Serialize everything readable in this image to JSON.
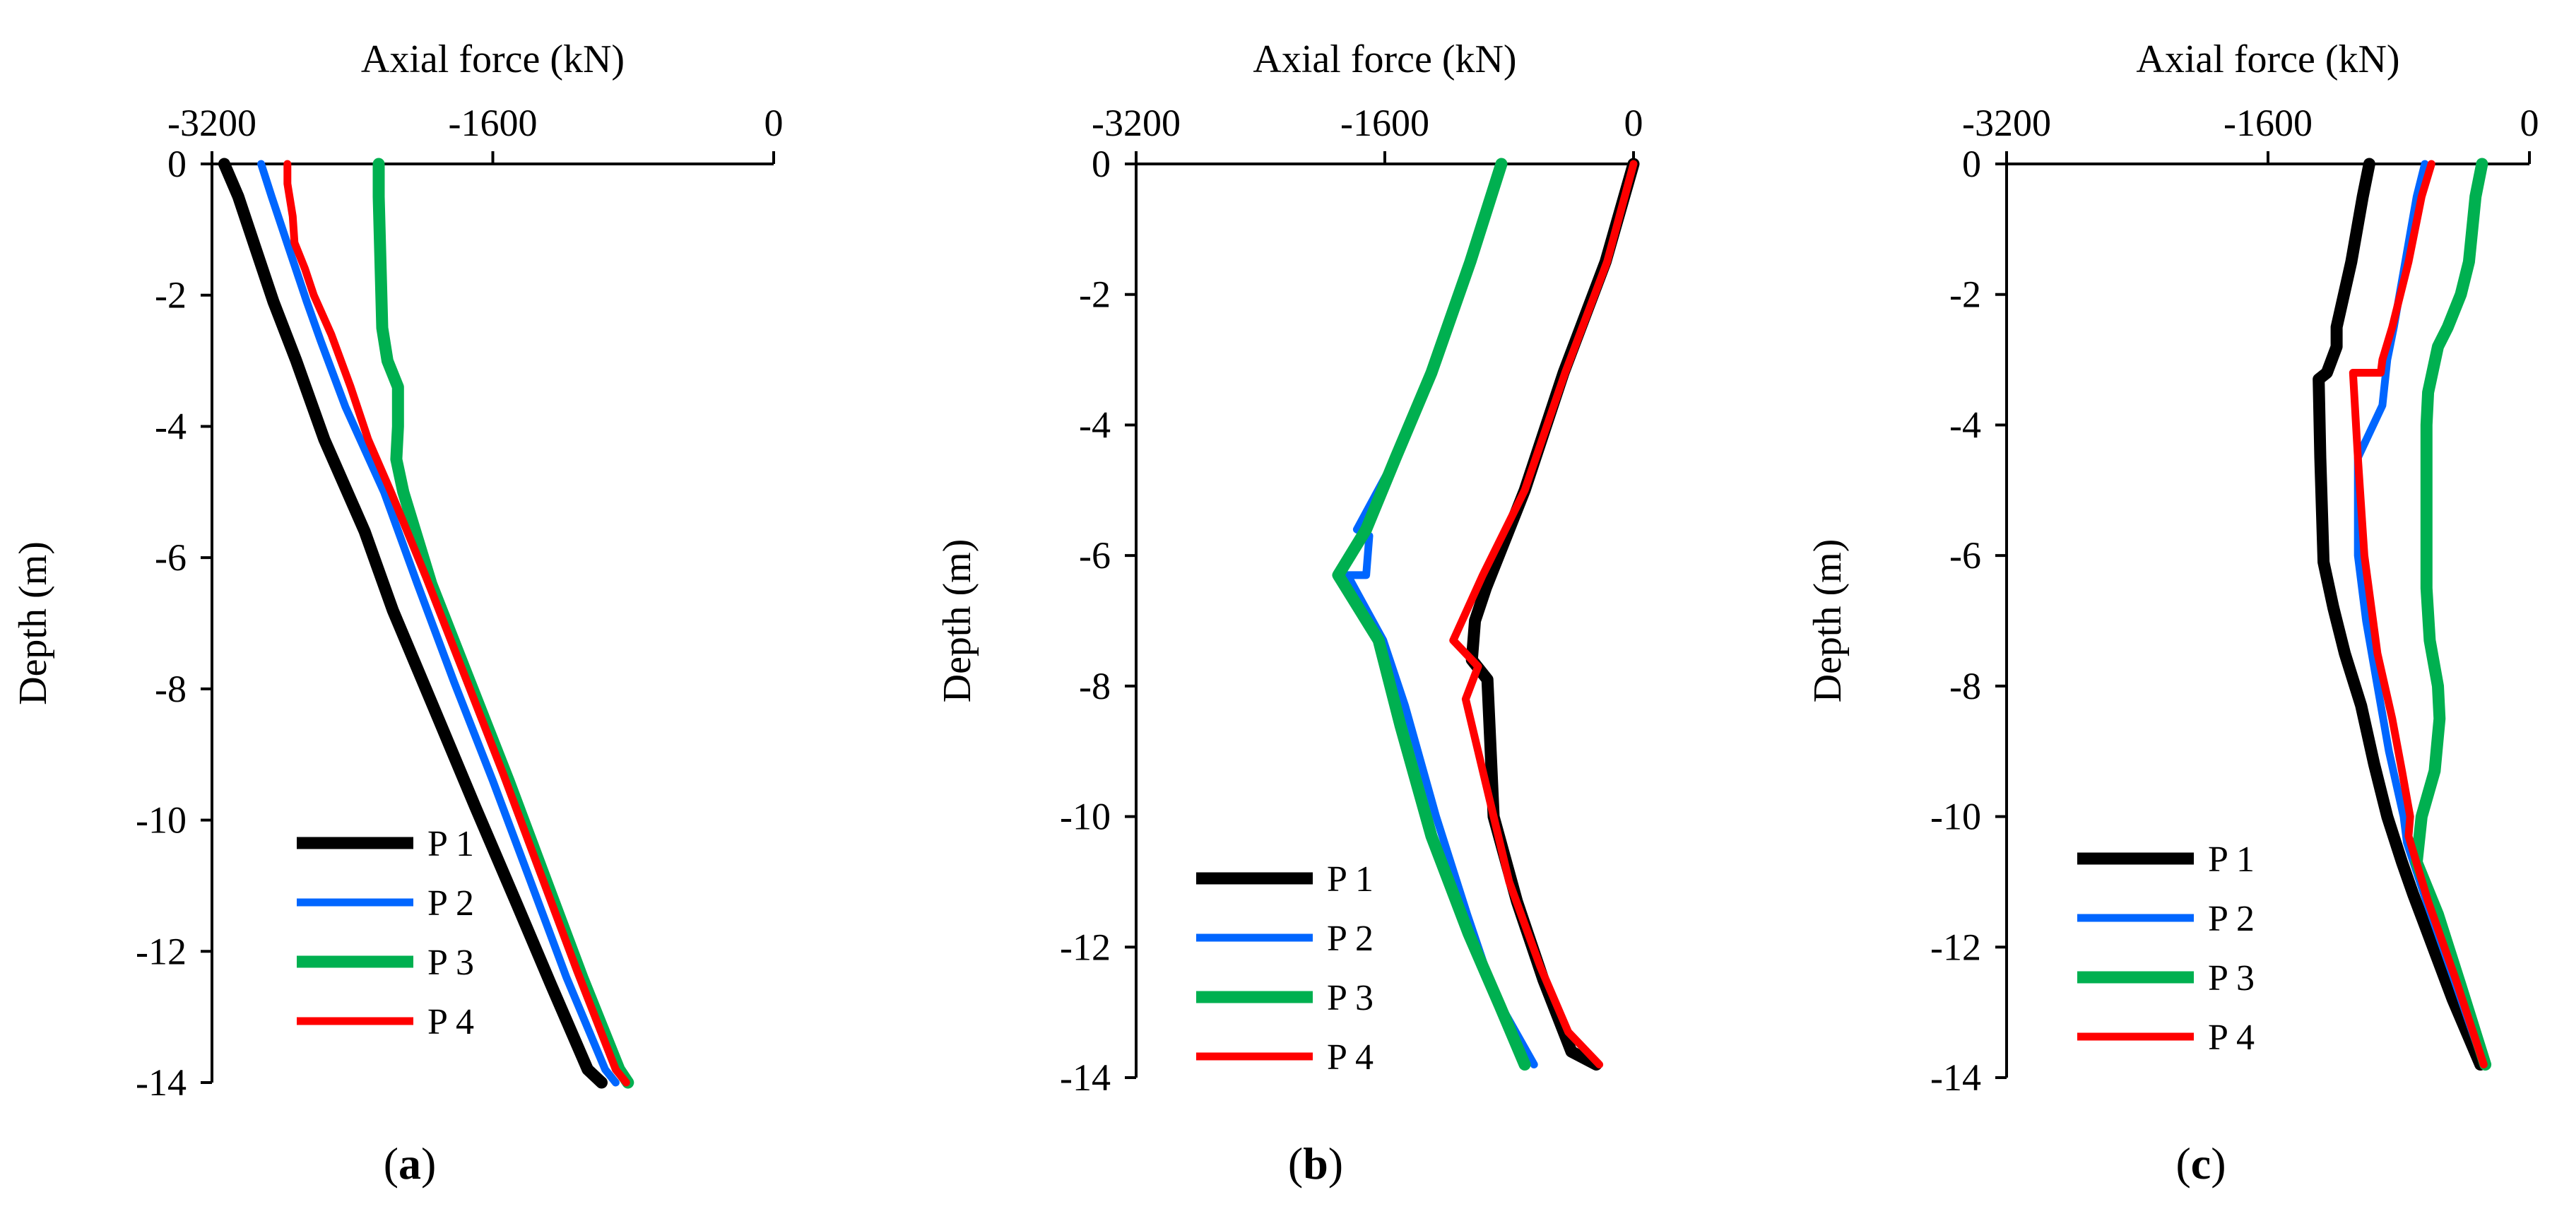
{
  "chart_data": [
    {
      "type": "line",
      "label": "a",
      "xlabel": "Axial force (kN)",
      "ylabel": "Depth (m)",
      "xlim": [
        -3200,
        0
      ],
      "ylim": [
        -14,
        0
      ],
      "xticks": [
        -3200,
        -1600,
        0
      ],
      "xtick_labels": [
        "-3200",
        "-1600",
        "0"
      ],
      "yticks": [
        0,
        -2,
        -4,
        -6,
        -8,
        -10,
        -12,
        -14
      ],
      "ytick_labels": [
        "0",
        "-2",
        "-4",
        "-6",
        "-8",
        "-10",
        "-12",
        "-14"
      ],
      "legend": "lower-left",
      "series": [
        {
          "name": "P 1",
          "color": "#000000",
          "points": [
            [
              -3130,
              0
            ],
            [
              -3050,
              -0.5
            ],
            [
              -2950,
              -1.3
            ],
            [
              -2850,
              -2.1
            ],
            [
              -2720,
              -3.0
            ],
            [
              -2560,
              -4.2
            ],
            [
              -2330,
              -5.6
            ],
            [
              -2170,
              -6.8
            ],
            [
              -1950,
              -8.2
            ],
            [
              -1700,
              -9.8
            ],
            [
              -1460,
              -11.3
            ],
            [
              -1270,
              -12.5
            ],
            [
              -1060,
              -13.8
            ],
            [
              -980,
              -14
            ]
          ]
        },
        {
          "name": "P 2",
          "color": "#0066ff",
          "points": [
            [
              -2920,
              0
            ],
            [
              -2860,
              -0.5
            ],
            [
              -2760,
              -1.3
            ],
            [
              -2660,
              -2.1
            ],
            [
              -2580,
              -2.7
            ],
            [
              -2440,
              -3.7
            ],
            [
              -2220,
              -5.0
            ],
            [
              -2030,
              -6.4
            ],
            [
              -1820,
              -7.9
            ],
            [
              -1600,
              -9.4
            ],
            [
              -1390,
              -10.9
            ],
            [
              -1180,
              -12.4
            ],
            [
              -960,
              -13.8
            ],
            [
              -900,
              -14
            ]
          ]
        },
        {
          "name": "P 3",
          "color": "#00b050",
          "points": [
            [
              -2250,
              0
            ],
            [
              -2250,
              -0.5
            ],
            [
              -2240,
              -1.5
            ],
            [
              -2230,
              -2.5
            ],
            [
              -2200,
              -3.0
            ],
            [
              -2140,
              -3.4
            ],
            [
              -2140,
              -4.0
            ],
            [
              -2150,
              -4.5
            ],
            [
              -2110,
              -5.0
            ],
            [
              -1950,
              -6.4
            ],
            [
              -1730,
              -7.9
            ],
            [
              -1510,
              -9.4
            ],
            [
              -1300,
              -10.9
            ],
            [
              -1090,
              -12.4
            ],
            [
              -880,
              -13.8
            ],
            [
              -830,
              -14
            ]
          ]
        },
        {
          "name": "P 4",
          "color": "#ff0000",
          "points": [
            [
              -2770,
              0
            ],
            [
              -2770,
              -0.3
            ],
            [
              -2740,
              -0.8
            ],
            [
              -2730,
              -1.2
            ],
            [
              -2670,
              -1.6
            ],
            [
              -2620,
              -2.0
            ],
            [
              -2520,
              -2.6
            ],
            [
              -2410,
              -3.4
            ],
            [
              -2310,
              -4.2
            ],
            [
              -2180,
              -5.0
            ],
            [
              -1980,
              -6.3
            ],
            [
              -1760,
              -7.8
            ],
            [
              -1540,
              -9.3
            ],
            [
              -1330,
              -10.8
            ],
            [
              -1120,
              -12.3
            ],
            [
              -900,
              -13.8
            ],
            [
              -840,
              -14
            ]
          ]
        }
      ],
      "panel_letter": "a",
      "panel_open": "(",
      "panel_close": ")"
    },
    {
      "type": "line",
      "label": "b",
      "xlabel": "Axial force (kN)",
      "ylabel": "Depth (m)",
      "xlim": [
        -3200,
        0
      ],
      "ylim": [
        -14,
        0
      ],
      "xticks": [
        -3200,
        -1600,
        0
      ],
      "xtick_labels": [
        "-3200",
        "-1600",
        "0"
      ],
      "yticks": [
        0,
        -2,
        -4,
        -6,
        -8,
        -10,
        -12,
        -14
      ],
      "ytick_labels": [
        "0",
        "-2",
        "-4",
        "-6",
        "-8",
        "-10",
        "-12",
        "-14"
      ],
      "legend": "lower-left",
      "series": [
        {
          "name": "P 1",
          "color": "#000000",
          "points": [
            [
              0,
              0
            ],
            [
              -180,
              -1.5
            ],
            [
              -450,
              -3.2
            ],
            [
              -700,
              -5.0
            ],
            [
              -950,
              -6.5
            ],
            [
              -1020,
              -7.0
            ],
            [
              -1040,
              -7.6
            ],
            [
              -940,
              -7.9
            ],
            [
              -900,
              -10.0
            ],
            [
              -750,
              -11.3
            ],
            [
              -580,
              -12.5
            ],
            [
              -400,
              -13.6
            ],
            [
              -240,
              -13.8
            ]
          ]
        },
        {
          "name": "P 2",
          "color": "#0066ff",
          "points": [
            [
              -850,
              0
            ],
            [
              -1050,
              -1.5
            ],
            [
              -1300,
              -3.2
            ],
            [
              -1530,
              -4.5
            ],
            [
              -1780,
              -5.6
            ],
            [
              -1700,
              -5.7
            ],
            [
              -1720,
              -6.3
            ],
            [
              -1840,
              -6.3
            ],
            [
              -1610,
              -7.3
            ],
            [
              -1470,
              -8.3
            ],
            [
              -1270,
              -10.0
            ],
            [
              -1070,
              -11.5
            ],
            [
              -900,
              -12.7
            ],
            [
              -640,
              -13.8
            ]
          ]
        },
        {
          "name": "P 3",
          "color": "#00b050",
          "points": [
            [
              -850,
              0
            ],
            [
              -1050,
              -1.5
            ],
            [
              -1300,
              -3.2
            ],
            [
              -1530,
              -4.5
            ],
            [
              -1720,
              -5.6
            ],
            [
              -1900,
              -6.3
            ],
            [
              -1640,
              -7.3
            ],
            [
              -1500,
              -8.6
            ],
            [
              -1300,
              -10.3
            ],
            [
              -1060,
              -11.8
            ],
            [
              -860,
              -12.9
            ],
            [
              -700,
              -13.8
            ]
          ]
        },
        {
          "name": "P 4",
          "color": "#ff0000",
          "points": [
            [
              0,
              0
            ],
            [
              -170,
              -1.5
            ],
            [
              -440,
              -3.2
            ],
            [
              -700,
              -5.0
            ],
            [
              -970,
              -6.3
            ],
            [
              -1160,
              -7.3
            ],
            [
              -1000,
              -7.7
            ],
            [
              -1080,
              -8.2
            ],
            [
              -950,
              -9.5
            ],
            [
              -800,
              -11.0
            ],
            [
              -600,
              -12.3
            ],
            [
              -420,
              -13.3
            ],
            [
              -220,
              -13.8
            ]
          ]
        }
      ],
      "panel_letter": "b",
      "panel_open": "(",
      "panel_close": ")"
    },
    {
      "type": "line",
      "label": "c",
      "xlabel": "Axial force (kN)",
      "ylabel": "Depth (m)",
      "xlim": [
        -3200,
        0
      ],
      "ylim": [
        -14,
        0
      ],
      "xticks": [
        -3200,
        -1600,
        0
      ],
      "xtick_labels": [
        "-3200",
        "-1600",
        "0"
      ],
      "yticks": [
        0,
        -2,
        -4,
        -6,
        -8,
        -10,
        -12,
        -14
      ],
      "ytick_labels": [
        "0",
        "-2",
        "-4",
        "-6",
        "-8",
        "-10",
        "-12",
        "-14"
      ],
      "legend": "lower-left",
      "series": [
        {
          "name": "P 1",
          "color": "#000000",
          "points": [
            [
              -980,
              0
            ],
            [
              -1020,
              -0.5
            ],
            [
              -1090,
              -1.5
            ],
            [
              -1180,
              -2.5
            ],
            [
              -1180,
              -2.8
            ],
            [
              -1210,
              -3.0
            ],
            [
              -1240,
              -3.2
            ],
            [
              -1290,
              -3.3
            ],
            [
              -1280,
              -4.5
            ],
            [
              -1260,
              -6.1
            ],
            [
              -1200,
              -6.8
            ],
            [
              -1130,
              -7.5
            ],
            [
              -1030,
              -8.3
            ],
            [
              -950,
              -9.2
            ],
            [
              -870,
              -10.0
            ],
            [
              -780,
              -10.7
            ],
            [
              -710,
              -11.2
            ],
            [
              -650,
              -11.6
            ],
            [
              -470,
              -12.8
            ],
            [
              -300,
              -13.8
            ]
          ]
        },
        {
          "name": "P 2",
          "color": "#0066ff",
          "points": [
            [
              -640,
              0
            ],
            [
              -690,
              -0.5
            ],
            [
              -760,
              -1.5
            ],
            [
              -830,
              -2.5
            ],
            [
              -870,
              -3.0
            ],
            [
              -900,
              -3.7
            ],
            [
              -1050,
              -4.5
            ],
            [
              -1050,
              -6.0
            ],
            [
              -1000,
              -7.0
            ],
            [
              -930,
              -8.0
            ],
            [
              -860,
              -9.0
            ],
            [
              -770,
              -10.0
            ],
            [
              -750,
              -10.4
            ],
            [
              -630,
              -11.3
            ],
            [
              -460,
              -12.5
            ],
            [
              -280,
              -13.8
            ]
          ]
        },
        {
          "name": "P 3",
          "color": "#00b050",
          "points": [
            [
              -290,
              0
            ],
            [
              -330,
              -0.5
            ],
            [
              -370,
              -1.5
            ],
            [
              -420,
              -2.0
            ],
            [
              -500,
              -2.5
            ],
            [
              -560,
              -2.8
            ],
            [
              -620,
              -3.5
            ],
            [
              -630,
              -4.0
            ],
            [
              -630,
              -5.0
            ],
            [
              -630,
              -6.5
            ],
            [
              -610,
              -7.3
            ],
            [
              -560,
              -8.0
            ],
            [
              -550,
              -8.5
            ],
            [
              -580,
              -9.3
            ],
            [
              -660,
              -10.0
            ],
            [
              -690,
              -10.7
            ],
            [
              -560,
              -11.5
            ],
            [
              -420,
              -12.6
            ],
            [
              -270,
              -13.8
            ]
          ]
        },
        {
          "name": "P 4",
          "color": "#ff0000",
          "points": [
            [
              -600,
              0
            ],
            [
              -660,
              -0.5
            ],
            [
              -740,
              -1.5
            ],
            [
              -840,
              -2.5
            ],
            [
              -900,
              -3.0
            ],
            [
              -910,
              -3.2
            ],
            [
              -1080,
              -3.2
            ],
            [
              -1050,
              -4.5
            ],
            [
              -1010,
              -6.0
            ],
            [
              -930,
              -7.5
            ],
            [
              -840,
              -8.5
            ],
            [
              -780,
              -9.3
            ],
            [
              -730,
              -10.0
            ],
            [
              -740,
              -10.3
            ],
            [
              -620,
              -11.3
            ],
            [
              -450,
              -12.5
            ],
            [
              -280,
              -13.8
            ]
          ]
        }
      ],
      "panel_letter": "c",
      "panel_open": "(",
      "panel_close": ")"
    }
  ]
}
